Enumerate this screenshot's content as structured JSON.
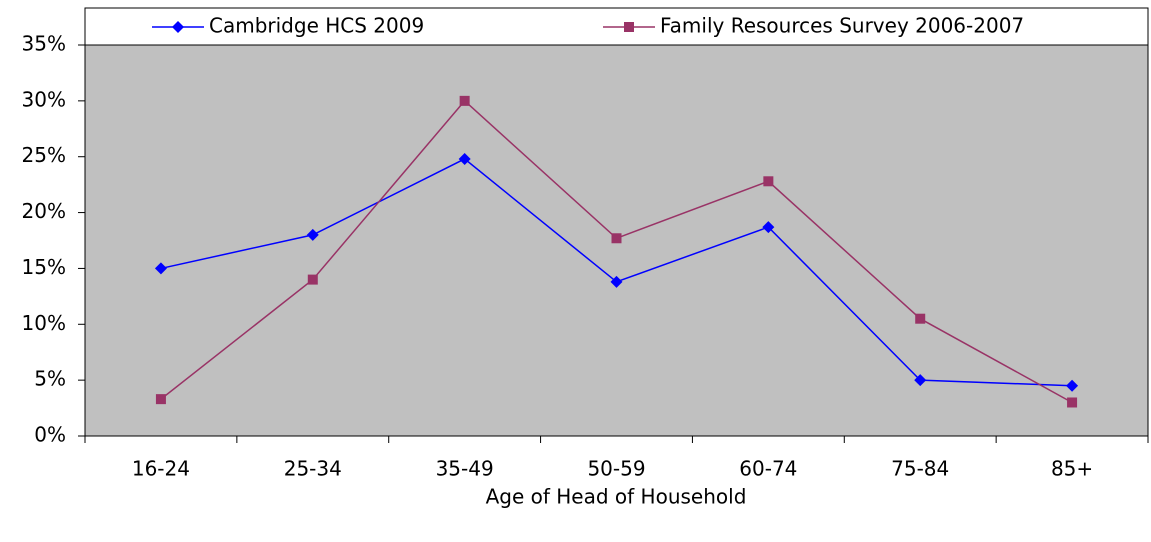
{
  "chart_data": {
    "type": "line",
    "x_label": "Age of Head of Household",
    "categories": [
      "16-24",
      "25-34",
      "35-49",
      "50-59",
      "60-74",
      "75-84",
      "85+"
    ],
    "series": [
      {
        "name": "Cambridge HCS 2009",
        "color": "#0000ff",
        "marker": "diamond",
        "values": [
          15,
          18,
          24.8,
          13.8,
          18.7,
          5,
          4.5
        ]
      },
      {
        "name": "Family Resources Survey 2006-2007",
        "color": "#993366",
        "marker": "square",
        "values": [
          3.3,
          14,
          30,
          17.7,
          22.8,
          10.5,
          3
        ]
      }
    ],
    "ylim": [
      0,
      35
    ],
    "yticks": [
      {
        "value": 0,
        "label": "0%"
      },
      {
        "value": 5,
        "label": "5%"
      },
      {
        "value": 10,
        "label": "10%"
      },
      {
        "value": 15,
        "label": "15%"
      },
      {
        "value": 20,
        "label": "20%"
      },
      {
        "value": 25,
        "label": "25%"
      },
      {
        "value": 30,
        "label": "30%"
      },
      {
        "value": 35,
        "label": "35%"
      }
    ],
    "legend": "top",
    "plot_background": "#c0c0c0"
  }
}
